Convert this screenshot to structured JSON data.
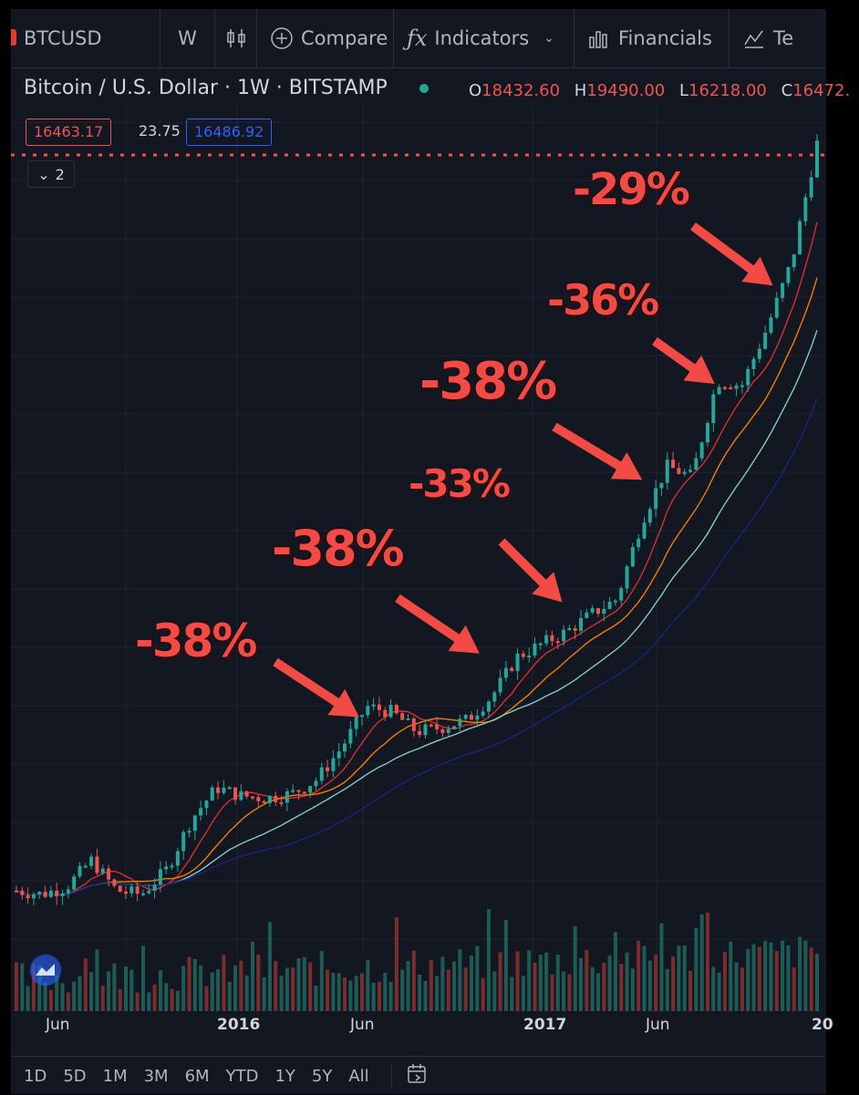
{
  "toolbar": {
    "symbol": "BTCUSD",
    "interval": "W",
    "compare": "Compare",
    "indicators": "Indicators",
    "financials": "Financials",
    "partial": "Te"
  },
  "header": {
    "title": "Bitcoin / U.S. Dollar · 1W · BITSTAMP",
    "o_label": "O",
    "o_value": "18432.60",
    "h_label": "H",
    "h_value": "19490.00",
    "l_label": "L",
    "l_value": "16218.00",
    "c_label": "C",
    "c_value": "16472."
  },
  "quote": {
    "bid": "16463.17",
    "spread": "23.75",
    "ask": "16486.92"
  },
  "collapse_count": "2",
  "x_axis": {
    "ticks": [
      {
        "label": "Jun",
        "bold": false
      },
      {
        "label": "2016",
        "bold": true
      },
      {
        "label": "Jun",
        "bold": false
      },
      {
        "label": "2017",
        "bold": true
      },
      {
        "label": "Jun",
        "bold": false
      },
      {
        "label": "20",
        "bold": true
      }
    ]
  },
  "ranges": [
    "1D",
    "5D",
    "1M",
    "3M",
    "6M",
    "YTD",
    "1Y",
    "5Y",
    "All"
  ],
  "annotations": [
    "-38%",
    "-38%",
    "-33%",
    "-38%",
    "-36%",
    "-29%"
  ],
  "colors": {
    "up": "#26a69a",
    "down": "#ef5350",
    "ma1": "#d32f2f",
    "ma2": "#f57c00",
    "ma3": "#80cbc4",
    "ma4": "#1a237e",
    "annotation": "#f24b45",
    "background": "#131722"
  },
  "chart_data": {
    "type": "candlestick",
    "title": "Bitcoin / U.S. Dollar · 1W · BITSTAMP",
    "x": [
      "2015-04",
      "2015-05",
      "2015-06",
      "2015-07",
      "2015-08",
      "2015-09",
      "2015-10",
      "2015-11",
      "2015-12",
      "2016-01",
      "2016-02",
      "2016-03",
      "2016-04",
      "2016-05",
      "2016-06",
      "2016-07",
      "2016-08",
      "2016-09",
      "2016-10",
      "2016-11",
      "2016-12",
      "2017-01",
      "2017-02",
      "2017-03",
      "2017-04",
      "2017-05",
      "2017-06",
      "2017-07",
      "2017-08",
      "2017-09",
      "2017-10",
      "2017-11",
      "2017-12"
    ],
    "series": [
      {
        "values": [
          240,
          235,
          245,
          285,
          240,
          235,
          270,
          360,
          430,
          410,
          405,
          415,
          450,
          540,
          680,
          660,
          590,
          605,
          630,
          720,
          900,
          970,
          1040,
          1150,
          1250,
          1950,
          2650,
          2500,
          4300,
          4200,
          5800,
          8500,
          16500
        ]
      }
    ],
    "reference_price": 16463.17,
    "drawdowns": [
      "-38%",
      "-38%",
      "-33%",
      "-38%",
      "-36%",
      "-29%"
    ]
  }
}
